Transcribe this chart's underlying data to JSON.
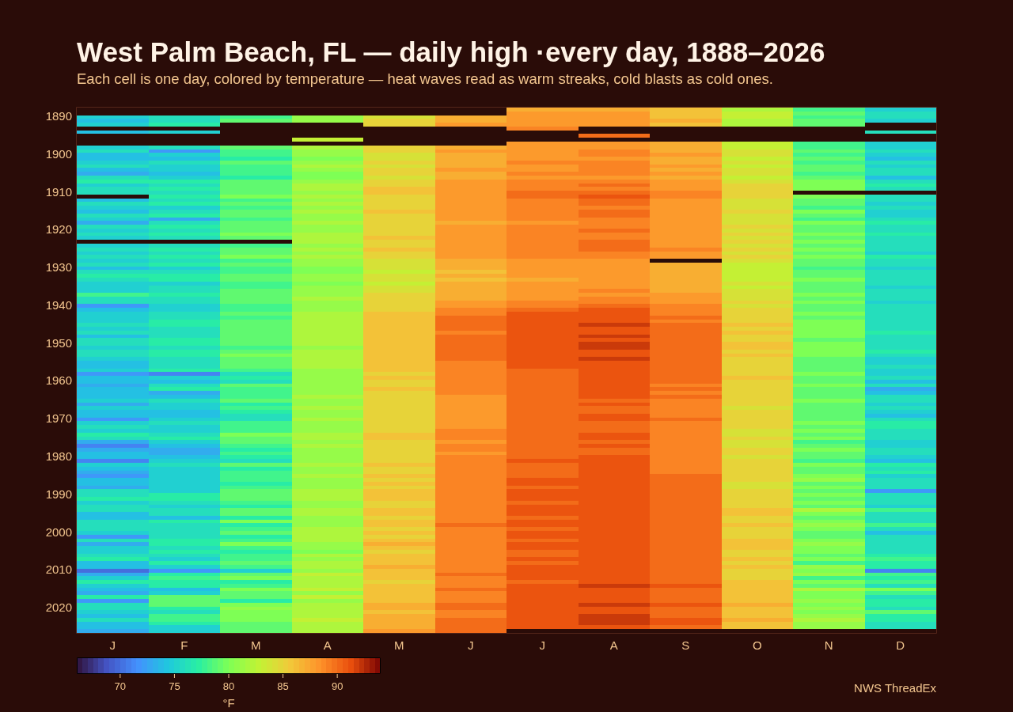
{
  "chart_data": {
    "type": "heatmap",
    "title": "West Palm Beach, FL — daily high ·every day, 1888–2026",
    "subtitle": "Each cell is one day, colored by temperature — heat waves read as warm streaks, cold blasts as cold ones.",
    "categories": [
      "J",
      "F",
      "M",
      "A",
      "M",
      "J",
      "J",
      "A",
      "S",
      "O",
      "N",
      "D"
    ],
    "y_categories": [
      null,
      null,
      "1890",
      null,
      null,
      null,
      null,
      null,
      null,
      null,
      null,
      null,
      "1900",
      null,
      null,
      null,
      null,
      null,
      null,
      null,
      null,
      null,
      "1910",
      null,
      null,
      null,
      null,
      null,
      null,
      null,
      null,
      null,
      "1920",
      null,
      null,
      null,
      null,
      null,
      null,
      null,
      null,
      null,
      "1930",
      null,
      null,
      null,
      null,
      null,
      null,
      null,
      null,
      null,
      "1940",
      null,
      null,
      null,
      null,
      null,
      null,
      null,
      null,
      null,
      "1950",
      null,
      null,
      null,
      null,
      null,
      null,
      null,
      null,
      null,
      "1960",
      null,
      null,
      null,
      null,
      null,
      null,
      null,
      null,
      null,
      "1970",
      null,
      null,
      null,
      null,
      null,
      null,
      null,
      null,
      null,
      "1980",
      null,
      null,
      null,
      null,
      null,
      null,
      null,
      null,
      null,
      "1990",
      null,
      null,
      null,
      null,
      null,
      null,
      null,
      null,
      null,
      "2000",
      null,
      null,
      null,
      null,
      null,
      null,
      null,
      null,
      null,
      "2010",
      null,
      null,
      null,
      null,
      null,
      null,
      null,
      null,
      null,
      "2020",
      null,
      null,
      null,
      null,
      null,
      null
    ],
    "cells": [
      [
        null,
        null,
        null,
        null,
        null,
        null,
        87,
        87,
        86,
        82,
        78,
        75
      ],
      [
        null,
        null,
        null,
        null,
        null,
        null,
        88,
        88,
        86,
        83,
        79,
        76
      ],
      [
        75,
        76,
        78,
        81,
        84,
        87,
        88,
        88,
        86,
        83,
        78,
        76
      ],
      [
        74,
        76,
        79,
        81,
        85,
        87,
        88,
        88,
        87,
        82,
        79,
        75
      ],
      [
        75,
        77,
        null,
        null,
        85,
        88,
        88,
        88,
        86,
        82,
        79,
        null
      ],
      [
        null,
        null,
        null,
        null,
        null,
        null,
        89,
        null,
        null,
        null,
        null,
        null
      ],
      [
        74,
        75,
        null,
        null,
        null,
        null,
        null,
        null,
        null,
        null,
        null,
        76
      ],
      [
        null,
        null,
        null,
        null,
        null,
        null,
        null,
        90,
        null,
        null,
        null,
        null
      ],
      [
        null,
        null,
        null,
        83,
        null,
        null,
        null,
        null,
        null,
        null,
        null,
        null
      ],
      [
        null,
        null,
        null,
        null,
        null,
        null,
        88,
        88,
        87,
        83,
        78,
        75
      ],
      [
        75,
        76,
        79,
        82,
        85,
        87,
        88,
        88,
        87,
        83,
        78,
        75
      ],
      [
        76,
        72,
        78,
        81,
        85,
        88,
        88,
        89,
        87,
        84,
        79,
        76
      ],
      [
        74,
        75,
        78,
        81,
        84,
        87,
        88,
        89,
        88,
        84,
        78,
        75
      ],
      [
        74,
        74,
        77,
        80,
        84,
        87,
        88,
        88,
        87,
        83,
        79,
        74
      ],
      [
        75,
        76,
        79,
        81,
        85,
        87,
        89,
        89,
        87,
        84,
        78,
        76
      ],
      [
        76,
        75,
        78,
        82,
        84,
        87,
        88,
        89,
        88,
        83,
        79,
        75
      ],
      [
        74,
        75,
        78,
        81,
        85,
        88,
        88,
        89,
        87,
        84,
        79,
        76
      ],
      [
        73,
        74,
        78,
        80,
        85,
        87,
        89,
        89,
        88,
        84,
        78,
        76
      ],
      [
        76,
        75,
        77,
        80,
        84,
        87,
        88,
        88,
        87,
        83,
        79,
        74
      ],
      [
        77,
        77,
        79,
        81,
        85,
        88,
        89,
        89,
        88,
        84,
        80,
        76
      ],
      [
        75,
        76,
        79,
        82,
        85,
        88,
        89,
        90,
        88,
        85,
        80,
        77
      ],
      [
        76,
        77,
        79,
        82,
        86,
        88,
        89,
        89,
        88,
        85,
        80,
        76
      ],
      [
        76,
        76,
        79,
        81,
        86,
        88,
        90,
        90,
        89,
        85,
        null,
        null
      ],
      [
        null,
        77,
        80,
        82,
        85,
        88,
        90,
        91,
        89,
        85,
        80,
        76
      ],
      [
        74,
        76,
        78,
        81,
        85,
        88,
        89,
        90,
        88,
        84,
        79,
        76
      ],
      [
        76,
        77,
        79,
        82,
        85,
        88,
        89,
        90,
        88,
        84,
        79,
        75
      ],
      [
        75,
        75,
        78,
        81,
        85,
        88,
        89,
        89,
        88,
        84,
        78,
        76
      ],
      [
        74,
        76,
        79,
        82,
        86,
        88,
        89,
        90,
        88,
        85,
        80,
        75
      ],
      [
        76,
        77,
        79,
        81,
        85,
        88,
        89,
        90,
        88,
        84,
        79,
        75
      ],
      [
        75,
        73,
        78,
        81,
        85,
        88,
        89,
        89,
        88,
        84,
        78,
        76
      ],
      [
        73,
        76,
        79,
        82,
        85,
        87,
        88,
        89,
        88,
        84,
        80,
        77
      ],
      [
        76,
        77,
        79,
        81,
        85,
        88,
        89,
        89,
        88,
        85,
        79,
        76
      ],
      [
        75,
        76,
        79,
        81,
        85,
        88,
        89,
        90,
        88,
        84,
        79,
        76
      ],
      [
        76,
        77,
        80,
        82,
        85,
        88,
        89,
        89,
        88,
        85,
        80,
        77
      ],
      [
        75,
        76,
        79,
        82,
        86,
        88,
        89,
        89,
        88,
        84,
        79,
        76
      ],
      [
        null,
        null,
        null,
        82,
        85,
        88,
        89,
        90,
        88,
        85,
        80,
        76
      ],
      [
        75,
        76,
        78,
        81,
        85,
        88,
        89,
        90,
        88,
        84,
        79,
        76
      ],
      [
        76,
        77,
        79,
        82,
        86,
        88,
        89,
        90,
        89,
        85,
        80,
        76
      ],
      [
        75,
        76,
        79,
        81,
        85,
        88,
        89,
        89,
        88,
        84,
        79,
        75
      ],
      [
        76,
        77,
        80,
        82,
        85,
        88,
        89,
        89,
        88,
        85,
        80,
        77
      ],
      [
        75,
        76,
        78,
        81,
        84,
        87,
        88,
        88,
        null,
        84,
        79,
        76
      ],
      [
        76,
        77,
        79,
        81,
        84,
        87,
        88,
        88,
        87,
        83,
        79,
        76
      ],
      [
        74,
        75,
        78,
        80,
        84,
        87,
        88,
        88,
        87,
        83,
        78,
        75
      ],
      [
        76,
        76,
        78,
        80,
        83,
        86,
        88,
        88,
        87,
        83,
        79,
        76
      ],
      [
        77,
        77,
        79,
        81,
        84,
        87,
        88,
        88,
        87,
        83,
        79,
        76
      ],
      [
        76,
        77,
        79,
        81,
        84,
        86,
        87,
        88,
        87,
        83,
        80,
        76
      ],
      [
        75,
        75,
        78,
        80,
        83,
        87,
        88,
        88,
        87,
        84,
        79,
        76
      ],
      [
        75,
        76,
        78,
        81,
        84,
        87,
        88,
        88,
        87,
        83,
        79,
        75
      ],
      [
        75,
        76,
        79,
        81,
        84,
        87,
        88,
        89,
        87,
        84,
        79,
        76
      ],
      [
        78,
        77,
        79,
        81,
        85,
        87,
        88,
        88,
        88,
        84,
        80,
        76
      ],
      [
        76,
        76,
        79,
        82,
        85,
        87,
        88,
        89,
        88,
        84,
        79,
        76
      ],
      [
        76,
        76,
        79,
        81,
        85,
        88,
        89,
        89,
        88,
        85,
        80,
        75
      ],
      [
        72,
        75,
        78,
        81,
        85,
        88,
        89,
        90,
        89,
        84,
        79,
        76
      ],
      [
        74,
        75,
        78,
        81,
        85,
        89,
        90,
        91,
        89,
        85,
        79,
        76
      ],
      [
        75,
        76,
        79,
        82,
        86,
        89,
        91,
        91,
        89,
        85,
        80,
        76
      ],
      [
        75,
        76,
        78,
        82,
        86,
        90,
        91,
        91,
        90,
        85,
        79,
        76
      ],
      [
        75,
        77,
        79,
        82,
        86,
        90,
        91,
        91,
        89,
        85,
        80,
        76
      ],
      [
        76,
        77,
        79,
        82,
        86,
        90,
        91,
        92,
        90,
        86,
        80,
        76
      ],
      [
        75,
        76,
        79,
        82,
        86,
        90,
        91,
        91,
        90,
        85,
        80,
        76
      ],
      [
        76,
        76,
        79,
        82,
        86,
        89,
        91,
        91,
        90,
        86,
        80,
        77
      ],
      [
        74,
        76,
        79,
        82,
        86,
        90,
        91,
        92,
        90,
        85,
        80,
        76
      ],
      [
        76,
        77,
        79,
        82,
        86,
        90,
        91,
        91,
        90,
        85,
        79,
        76
      ],
      [
        76,
        77,
        79,
        82,
        86,
        90,
        91,
        92,
        90,
        86,
        80,
        76
      ],
      [
        75,
        76,
        78,
        81,
        86,
        90,
        91,
        92,
        90,
        86,
        80,
        76
      ],
      [
        76,
        77,
        79,
        82,
        86,
        90,
        91,
        91,
        90,
        85,
        80,
        77
      ],
      [
        76,
        77,
        80,
        82,
        86,
        90,
        91,
        91,
        90,
        86,
        80,
        76
      ],
      [
        75,
        76,
        79,
        82,
        86,
        90,
        91,
        92,
        90,
        85,
        79,
        75
      ],
      [
        74,
        76,
        79,
        82,
        86,
        89,
        91,
        91,
        90,
        85,
        79,
        75
      ],
      [
        74,
        76,
        79,
        82,
        86,
        89,
        91,
        91,
        90,
        85,
        79,
        76
      ],
      [
        75,
        77,
        78,
        81,
        86,
        89,
        90,
        91,
        90,
        85,
        79,
        75
      ],
      [
        72,
        71,
        76,
        81,
        85,
        89,
        90,
        91,
        90,
        85,
        80,
        75
      ],
      [
        74,
        75,
        77,
        81,
        86,
        89,
        90,
        91,
        90,
        86,
        79,
        76
      ],
      [
        74,
        74,
        76,
        81,
        85,
        89,
        90,
        91,
        90,
        85,
        79,
        74
      ],
      [
        73,
        76,
        79,
        81,
        85,
        89,
        90,
        91,
        89,
        85,
        80,
        76
      ],
      [
        74,
        77,
        78,
        81,
        86,
        89,
        90,
        91,
        90,
        85,
        79,
        73
      ],
      [
        74,
        73,
        78,
        81,
        85,
        89,
        90,
        91,
        89,
        85,
        79,
        74
      ],
      [
        74,
        74,
        78,
        82,
        85,
        88,
        90,
        91,
        90,
        85,
        79,
        76
      ],
      [
        75,
        76,
        79,
        81,
        85,
        88,
        90,
        90,
        89,
        85,
        80,
        76
      ],
      [
        73,
        75,
        77,
        81,
        85,
        88,
        90,
        91,
        89,
        85,
        79,
        75
      ],
      [
        75,
        75,
        78,
        82,
        85,
        88,
        90,
        90,
        89,
        84,
        79,
        76
      ],
      [
        74,
        74,
        77,
        81,
        85,
        88,
        90,
        90,
        89,
        85,
        79,
        75
      ],
      [
        74,
        74,
        76,
        81,
        85,
        88,
        90,
        91,
        89,
        85,
        79,
        74
      ],
      [
        72,
        75,
        76,
        82,
        85,
        88,
        90,
        91,
        90,
        85,
        79,
        76
      ],
      [
        75,
        76,
        78,
        81,
        85,
        88,
        90,
        90,
        89,
        85,
        80,
        77
      ],
      [
        76,
        75,
        78,
        81,
        85,
        88,
        90,
        90,
        89,
        85,
        79,
        77
      ],
      [
        75,
        75,
        78,
        81,
        85,
        89,
        90,
        90,
        89,
        84,
        80,
        76
      ],
      [
        77,
        76,
        80,
        82,
        86,
        89,
        90,
        91,
        89,
        84,
        79,
        76
      ],
      [
        76,
        77,
        79,
        82,
        86,
        89,
        90,
        91,
        89,
        85,
        80,
        76
      ],
      [
        73,
        75,
        79,
        81,
        85,
        88,
        90,
        90,
        89,
        84,
        78,
        75
      ],
      [
        71,
        74,
        78,
        82,
        85,
        89,
        90,
        91,
        89,
        84,
        79,
        75
      ],
      [
        73,
        73,
        77,
        81,
        85,
        89,
        90,
        90,
        89,
        85,
        80,
        76
      ],
      [
        74,
        73,
        78,
        81,
        85,
        88,
        90,
        90,
        89,
        85,
        79,
        76
      ],
      [
        74,
        74,
        77,
        81,
        85,
        89,
        90,
        91,
        89,
        84,
        79,
        75
      ],
      [
        71,
        75,
        76,
        81,
        85,
        89,
        91,
        91,
        89,
        85,
        78,
        74
      ],
      [
        75,
        76,
        79,
        82,
        86,
        89,
        90,
        91,
        89,
        85,
        80,
        77
      ],
      [
        74,
        75,
        77,
        81,
        85,
        89,
        90,
        91,
        89,
        85,
        79,
        76
      ],
      [
        73,
        75,
        78,
        81,
        85,
        89,
        90,
        91,
        89,
        85,
        79,
        77
      ],
      [
        72,
        75,
        78,
        82,
        86,
        89,
        90,
        91,
        90,
        85,
        80,
        75
      ],
      [
        74,
        75,
        78,
        81,
        85,
        89,
        91,
        91,
        90,
        85,
        81,
        76
      ],
      [
        74,
        75,
        77,
        81,
        86,
        89,
        91,
        91,
        90,
        84,
        79,
        76
      ],
      [
        73,
        75,
        78,
        81,
        85,
        89,
        90,
        91,
        90,
        84,
        80,
        76
      ],
      [
        76,
        75,
        79,
        82,
        86,
        89,
        91,
        91,
        90,
        85,
        79,
        72
      ],
      [
        76,
        77,
        79,
        82,
        86,
        89,
        91,
        91,
        90,
        85,
        80,
        76
      ],
      [
        77,
        77,
        79,
        82,
        86,
        89,
        91,
        91,
        90,
        85,
        79,
        76
      ],
      [
        75,
        76,
        78,
        81,
        85,
        89,
        90,
        91,
        90,
        85,
        80,
        76
      ],
      [
        76,
        75,
        77,
        81,
        85,
        89,
        91,
        91,
        90,
        85,
        79,
        75
      ],
      [
        76,
        76,
        79,
        82,
        86,
        89,
        91,
        91,
        90,
        86,
        82,
        78
      ],
      [
        74,
        76,
        79,
        82,
        86,
        89,
        91,
        91,
        90,
        86,
        80,
        76
      ],
      [
        74,
        74,
        77,
        81,
        85,
        89,
        90,
        91,
        90,
        85,
        79,
        76
      ],
      [
        76,
        77,
        80,
        81,
        86,
        89,
        91,
        91,
        90,
        85,
        80,
        76
      ],
      [
        76,
        76,
        77,
        81,
        86,
        90,
        91,
        91,
        90,
        86,
        81,
        78
      ],
      [
        76,
        76,
        78,
        82,
        85,
        89,
        90,
        91,
        90,
        85,
        80,
        76
      ],
      [
        75,
        76,
        79,
        82,
        86,
        89,
        91,
        91,
        90,
        85,
        79,
        74
      ],
      [
        72,
        76,
        77,
        82,
        85,
        89,
        91,
        91,
        90,
        85,
        79,
        76
      ],
      [
        76,
        77,
        78,
        82,
        86,
        89,
        90,
        91,
        90,
        86,
        80,
        76
      ],
      [
        73,
        77,
        80,
        81,
        87,
        89,
        91,
        91,
        90,
        86,
        81,
        76
      ],
      [
        75,
        76,
        78,
        81,
        86,
        89,
        91,
        91,
        90,
        86,
        80,
        76
      ],
      [
        75,
        77,
        77,
        80,
        85,
        89,
        90,
        91,
        90,
        85,
        80,
        76
      ],
      [
        76,
        76,
        78,
        82,
        86,
        89,
        90,
        91,
        90,
        85,
        79,
        77
      ],
      [
        77,
        75,
        78,
        81,
        86,
        89,
        91,
        91,
        90,
        86,
        80,
        78
      ],
      [
        74,
        77,
        79,
        82,
        86,
        89,
        90,
        91,
        90,
        85,
        78,
        77
      ],
      [
        74,
        75,
        78,
        82,
        87,
        89,
        91,
        91,
        90,
        86,
        81,
        77
      ],
      [
        70,
        72,
        75,
        81,
        86,
        89,
        91,
        91,
        90,
        85,
        80,
        71
      ],
      [
        73,
        77,
        79,
        83,
        86,
        90,
        91,
        91,
        90,
        85,
        81,
        78
      ],
      [
        75,
        78,
        80,
        82,
        86,
        89,
        91,
        91,
        90,
        85,
        78,
        77
      ],
      [
        77,
        77,
        77,
        82,
        85,
        89,
        90,
        91,
        90,
        86,
        80,
        78
      ],
      [
        75,
        77,
        78,
        82,
        86,
        89,
        91,
        92,
        91,
        86,
        79,
        76
      ],
      [
        74,
        74,
        80,
        83,
        86,
        90,
        91,
        91,
        90,
        86,
        82,
        80
      ],
      [
        73,
        75,
        79,
        81,
        86,
        89,
        91,
        91,
        90,
        86,
        80,
        78
      ],
      [
        77,
        79,
        79,
        83,
        86,
        89,
        91,
        91,
        90,
        86,
        80,
        76
      ],
      [
        72,
        79,
        77,
        81,
        86,
        89,
        91,
        91,
        90,
        86,
        81,
        77
      ],
      [
        76,
        79,
        80,
        82,
        87,
        90,
        91,
        92,
        91,
        87,
        80,
        77
      ],
      [
        76,
        77,
        81,
        82,
        87,
        90,
        91,
        91,
        90,
        86,
        81,
        76
      ],
      [
        75,
        76,
        80,
        82,
        86,
        89,
        91,
        91,
        90,
        86,
        80,
        79
      ],
      [
        74,
        78,
        80,
        82,
        87,
        89,
        91,
        92,
        90,
        86,
        81,
        77
      ],
      [
        76,
        78,
        80,
        83,
        87,
        90,
        91,
        92,
        91,
        87,
        82,
        77
      ],
      [
        74,
        77,
        79,
        82,
        87,
        90,
        91,
        92,
        91,
        86,
        81,
        76
      ],
      [
        74,
        75,
        79,
        82,
        87,
        90,
        91,
        91,
        90,
        86,
        81,
        76
      ],
      [
        73,
        75,
        79,
        82,
        88,
        90,
        null,
        null,
        null,
        null,
        null,
        null
      ]
    ],
    "clim": [
      66,
      94
    ],
    "cticks": [
      70,
      75,
      80,
      85,
      90
    ],
    "clabel": "°F",
    "annotations": [
      "NWS ThreadEx"
    ]
  }
}
